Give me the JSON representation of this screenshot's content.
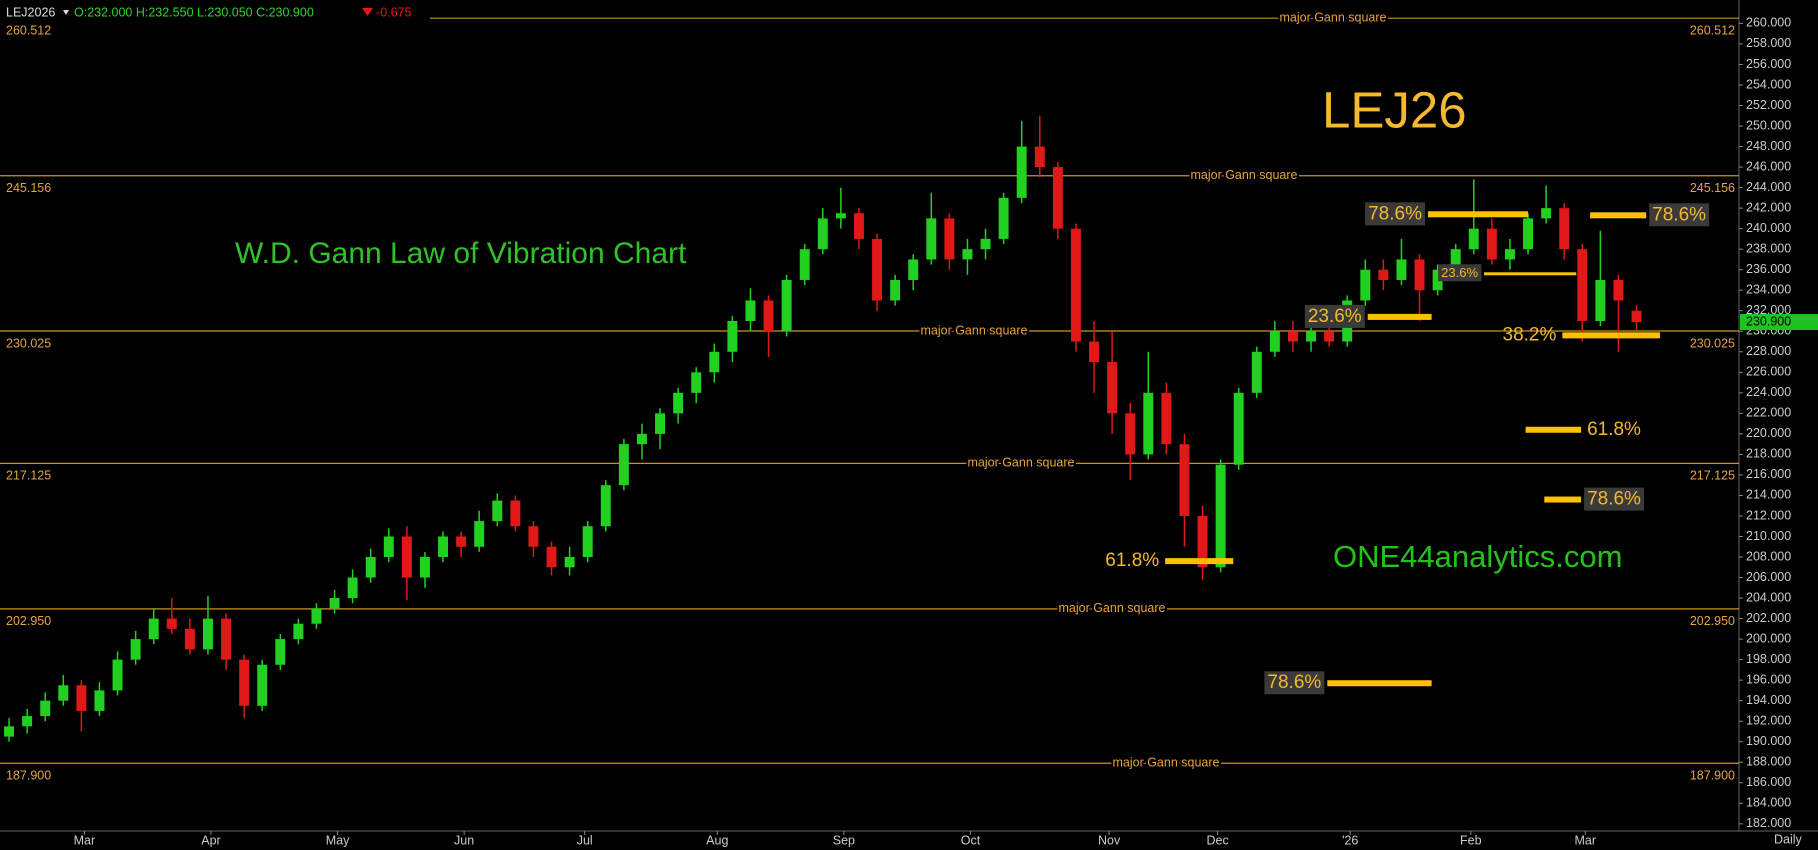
{
  "chart_data": {
    "type": "candlestick",
    "header": {
      "symbol": "LEJ2026",
      "ohlc": "O:232.000 H:232.550 L:230.050 C:230.900",
      "change": "-0.675"
    },
    "title": "W.D. Gann Law of Vibration Chart",
    "symbol_label": "LEJ26",
    "watermark": "ONE44analytics.com",
    "interval": "Daily",
    "up_color": "#22d022",
    "down_color": "#e01818",
    "xlim": [
      0,
      288.5
    ],
    "xticks": [
      {
        "value": 14,
        "label": "Mar"
      },
      {
        "value": 35,
        "label": "Apr"
      },
      {
        "value": 56,
        "label": "May"
      },
      {
        "value": 77,
        "label": "Jun"
      },
      {
        "value": 97,
        "label": "Jul"
      },
      {
        "value": 119,
        "label": "Aug"
      },
      {
        "value": 140,
        "label": "Sep"
      },
      {
        "value": 161,
        "label": "Oct"
      },
      {
        "value": 184,
        "label": "Nov"
      },
      {
        "value": 202,
        "label": "Dec"
      },
      {
        "value": 224,
        "label": "'26"
      },
      {
        "value": 244,
        "label": "Feb"
      },
      {
        "value": 263,
        "label": "Mar"
      }
    ],
    "ylim": [
      181.3,
      261.6
    ],
    "yticks": [
      {
        "value": 182,
        "label": "182.000"
      },
      {
        "value": 184,
        "label": "184.000"
      },
      {
        "value": 186,
        "label": "186.000"
      },
      {
        "value": 188,
        "label": "188.000"
      },
      {
        "value": 190,
        "label": "190.000"
      },
      {
        "value": 192,
        "label": "192.000"
      },
      {
        "value": 194,
        "label": "194.000"
      },
      {
        "value": 196,
        "label": "196.000"
      },
      {
        "value": 198,
        "label": "198.000"
      },
      {
        "value": 200,
        "label": "200.000"
      },
      {
        "value": 202,
        "label": "202.000"
      },
      {
        "value": 204,
        "label": "204.000"
      },
      {
        "value": 206,
        "label": "206.000"
      },
      {
        "value": 208,
        "label": "208.000"
      },
      {
        "value": 210,
        "label": "210.000"
      },
      {
        "value": 212,
        "label": "212.000"
      },
      {
        "value": 214,
        "label": "214.000"
      },
      {
        "value": 216,
        "label": "216.000"
      },
      {
        "value": 218,
        "label": "218.000"
      },
      {
        "value": 220,
        "label": "220.000"
      },
      {
        "value": 222,
        "label": "222.000"
      },
      {
        "value": 224,
        "label": "224.000"
      },
      {
        "value": 226,
        "label": "226.000"
      },
      {
        "value": 228,
        "label": "228.000"
      },
      {
        "value": 230,
        "label": "230.000"
      },
      {
        "value": 232,
        "label": "232.000"
      },
      {
        "value": 234,
        "label": "234.000"
      },
      {
        "value": 236,
        "label": "236.000"
      },
      {
        "value": 238,
        "label": "238.000"
      },
      {
        "value": 240,
        "label": "240.000"
      },
      {
        "value": 242,
        "label": "242.000"
      },
      {
        "value": 244,
        "label": "244.000"
      },
      {
        "value": 246,
        "label": "246.000"
      },
      {
        "value": 248,
        "label": "248.000"
      },
      {
        "value": 250,
        "label": "250.000"
      },
      {
        "value": 252,
        "label": "252.000"
      },
      {
        "value": 254,
        "label": "254.000"
      },
      {
        "value": 256,
        "label": "256.000"
      },
      {
        "value": 258,
        "label": "258.000"
      },
      {
        "value": 260,
        "label": "260.000"
      }
    ],
    "last": {
      "value": 230.9,
      "label": "230.900"
    },
    "gann_levels": [
      {
        "value": 260.512,
        "note": "major Gann square"
      },
      {
        "value": 245.156,
        "note": "major Gann square"
      },
      {
        "value": 230.025,
        "note": "major Gann square"
      },
      {
        "value": 217.125,
        "note": "major Gann square"
      },
      {
        "value": 202.95,
        "label": "202.950",
        "note": "major Gann square"
      },
      {
        "value": 187.9,
        "label": "187.900",
        "note": "major Gann square"
      }
    ],
    "fibs": [
      {
        "label": "61.8%",
        "value": 207.6,
        "x": [
          193.3,
          204.6
        ],
        "side": "left",
        "boxed": false
      },
      {
        "label": "78.6%",
        "value": 195.7,
        "x": [
          220.2,
          237.5
        ],
        "side": "left",
        "boxed": true
      },
      {
        "label": "23.6%",
        "value": 231.4,
        "x": [
          226.9,
          237.5
        ],
        "side": "left",
        "boxed": true
      },
      {
        "label": "78.6%",
        "value": 241.4,
        "x": [
          236.9,
          253.5
        ],
        "side": "left",
        "boxed": true
      },
      {
        "label": "23.6%",
        "value": 235.6,
        "x": [
          246.2,
          261.5
        ],
        "side": "left",
        "boxed": true,
        "small": true
      },
      {
        "label": "38.2%",
        "value": 229.6,
        "x": [
          259.2,
          275.4
        ],
        "side": "left",
        "boxed": false
      },
      {
        "label": "78.6%",
        "value": 241.3,
        "x": [
          263.8,
          273.1
        ],
        "side": "right",
        "boxed": true
      },
      {
        "label": "61.8%",
        "value": 220.4,
        "x": [
          253.1,
          262.3
        ],
        "side": "right",
        "boxed": false
      },
      {
        "label": "78.6%",
        "value": 213.6,
        "x": [
          256.2,
          262.3
        ],
        "side": "right",
        "boxed": true
      }
    ],
    "x": [
      1.5,
      4.5,
      7.5,
      10.5,
      13.5,
      16.5,
      19.5,
      22.5,
      25.5,
      28.5,
      31.5,
      34.5,
      37.5,
      40.5,
      43.5,
      46.5,
      49.5,
      52.5,
      55.5,
      58.5,
      61.5,
      64.5,
      67.5,
      70.5,
      73.5,
      76.5,
      79.5,
      82.5,
      85.5,
      88.5,
      91.5,
      94.5,
      97.5,
      100.5,
      103.5,
      106.5,
      109.5,
      112.5,
      115.5,
      118.5,
      121.5,
      124.5,
      127.5,
      130.5,
      133.5,
      136.5,
      139.5,
      142.5,
      145.5,
      148.5,
      151.5,
      154.5,
      157.5,
      160.5,
      163.5,
      166.5,
      169.5,
      172.5,
      175.5,
      178.5,
      181.5,
      184.5,
      187.5,
      190.5,
      193.5,
      196.5,
      199.5,
      202.5,
      205.5,
      208.5,
      211.5,
      214.5,
      217.5,
      220.5,
      223.5,
      226.5,
      229.5,
      232.5,
      235.5,
      238.5,
      241.5,
      244.5,
      247.5,
      250.5,
      253.5,
      256.5,
      259.5,
      262.5,
      265.5,
      268.5,
      271.5
    ],
    "candles": [
      [
        190.5,
        192.3,
        190,
        191.5
      ],
      [
        191.5,
        193.2,
        190.8,
        192.5
      ],
      [
        192.5,
        194.8,
        192,
        194
      ],
      [
        194,
        196.5,
        193.5,
        195.5
      ],
      [
        195.5,
        196,
        191,
        193
      ],
      [
        193,
        195.8,
        192.5,
        195
      ],
      [
        195,
        198.8,
        194.5,
        198
      ],
      [
        198,
        200.8,
        197.5,
        200
      ],
      [
        200,
        203,
        199.5,
        202
      ],
      [
        202,
        204,
        200.5,
        201
      ],
      [
        201,
        202,
        198.5,
        199
      ],
      [
        199,
        204.2,
        198.5,
        202
      ],
      [
        202,
        202.5,
        197,
        198
      ],
      [
        198,
        198.5,
        192.3,
        193.5
      ],
      [
        193.5,
        198,
        193,
        197.5
      ],
      [
        197.5,
        200.5,
        197,
        200
      ],
      [
        200,
        202,
        199.5,
        201.5
      ],
      [
        201.5,
        203.5,
        201,
        203
      ],
      [
        203,
        204.8,
        202.5,
        204
      ],
      [
        204,
        206.8,
        203.5,
        206
      ],
      [
        206,
        208.8,
        205.5,
        208
      ],
      [
        208,
        210.8,
        207.5,
        210
      ],
      [
        210,
        211,
        203.8,
        206
      ],
      [
        206,
        208.5,
        205,
        208
      ],
      [
        208,
        210.5,
        207.5,
        210
      ],
      [
        210,
        210.5,
        208,
        209
      ],
      [
        209,
        212.5,
        208.5,
        211.5
      ],
      [
        211.5,
        214.2,
        211,
        213.5
      ],
      [
        213.5,
        214,
        210.5,
        211
      ],
      [
        211,
        211.5,
        208,
        209
      ],
      [
        209,
        209.5,
        206.2,
        207
      ],
      [
        207,
        209,
        206.2,
        208
      ],
      [
        208,
        211.5,
        207.5,
        211
      ],
      [
        211,
        215.5,
        210.5,
        215
      ],
      [
        215,
        219.5,
        214.5,
        219
      ],
      [
        219,
        221,
        217.5,
        220
      ],
      [
        220,
        222.5,
        218.5,
        222
      ],
      [
        222,
        224.5,
        221,
        224
      ],
      [
        224,
        226.5,
        223,
        226
      ],
      [
        226,
        228.8,
        225,
        228
      ],
      [
        228,
        231.5,
        227,
        231
      ],
      [
        231,
        234.2,
        230,
        233
      ],
      [
        233,
        233.5,
        227.5,
        230
      ],
      [
        230,
        235.5,
        229.5,
        235
      ],
      [
        235,
        238.5,
        234.5,
        238
      ],
      [
        238,
        242,
        237.5,
        241
      ],
      [
        241,
        244,
        240,
        241.5
      ],
      [
        241.5,
        242,
        238,
        239
      ],
      [
        239,
        239.5,
        232,
        233
      ],
      [
        233,
        235.5,
        232.5,
        235
      ],
      [
        235,
        237.5,
        234,
        237
      ],
      [
        237,
        243.5,
        236.5,
        241
      ],
      [
        241,
        241.5,
        236,
        237
      ],
      [
        237,
        239,
        235.5,
        238
      ],
      [
        238,
        240,
        237,
        239
      ],
      [
        239,
        243.5,
        238.5,
        243
      ],
      [
        243,
        250.5,
        242.5,
        248
      ],
      [
        248,
        251,
        245,
        246
      ],
      [
        246,
        246.5,
        239,
        240
      ],
      [
        240,
        240.5,
        228,
        229
      ],
      [
        229,
        231,
        224,
        227
      ],
      [
        227,
        230,
        220,
        222
      ],
      [
        222,
        223,
        215.5,
        218
      ],
      [
        218,
        228,
        217.5,
        224
      ],
      [
        224,
        225,
        218,
        219
      ],
      [
        219,
        220,
        209,
        212
      ],
      [
        212,
        213,
        205.8,
        207
      ],
      [
        207,
        217.5,
        206.5,
        217
      ],
      [
        217,
        224.5,
        216.5,
        224
      ],
      [
        224,
        228.5,
        223.5,
        228
      ],
      [
        228,
        231,
        227.5,
        230
      ],
      [
        230,
        231,
        228,
        229
      ],
      [
        229,
        231,
        228,
        230
      ],
      [
        230,
        230.5,
        228.5,
        229
      ],
      [
        229,
        233.5,
        228.5,
        233
      ],
      [
        233,
        237,
        232.5,
        236
      ],
      [
        236,
        237,
        234,
        235
      ],
      [
        235,
        239,
        234.5,
        237
      ],
      [
        237,
        237.5,
        231,
        234
      ],
      [
        234,
        236.5,
        233.5,
        236
      ],
      [
        236,
        238.5,
        235,
        238
      ],
      [
        238,
        244.8,
        237.5,
        240
      ],
      [
        240,
        241,
        236.5,
        237
      ],
      [
        237,
        239,
        236,
        238
      ],
      [
        238,
        241.5,
        237.5,
        241
      ],
      [
        241,
        244.2,
        240.5,
        242
      ],
      [
        242,
        242.5,
        237,
        238
      ],
      [
        238,
        238.5,
        229,
        231
      ],
      [
        231,
        239.8,
        230.5,
        235
      ],
      [
        235,
        235.5,
        228,
        233
      ],
      [
        232,
        232.55,
        230.05,
        230.9
      ]
    ]
  }
}
